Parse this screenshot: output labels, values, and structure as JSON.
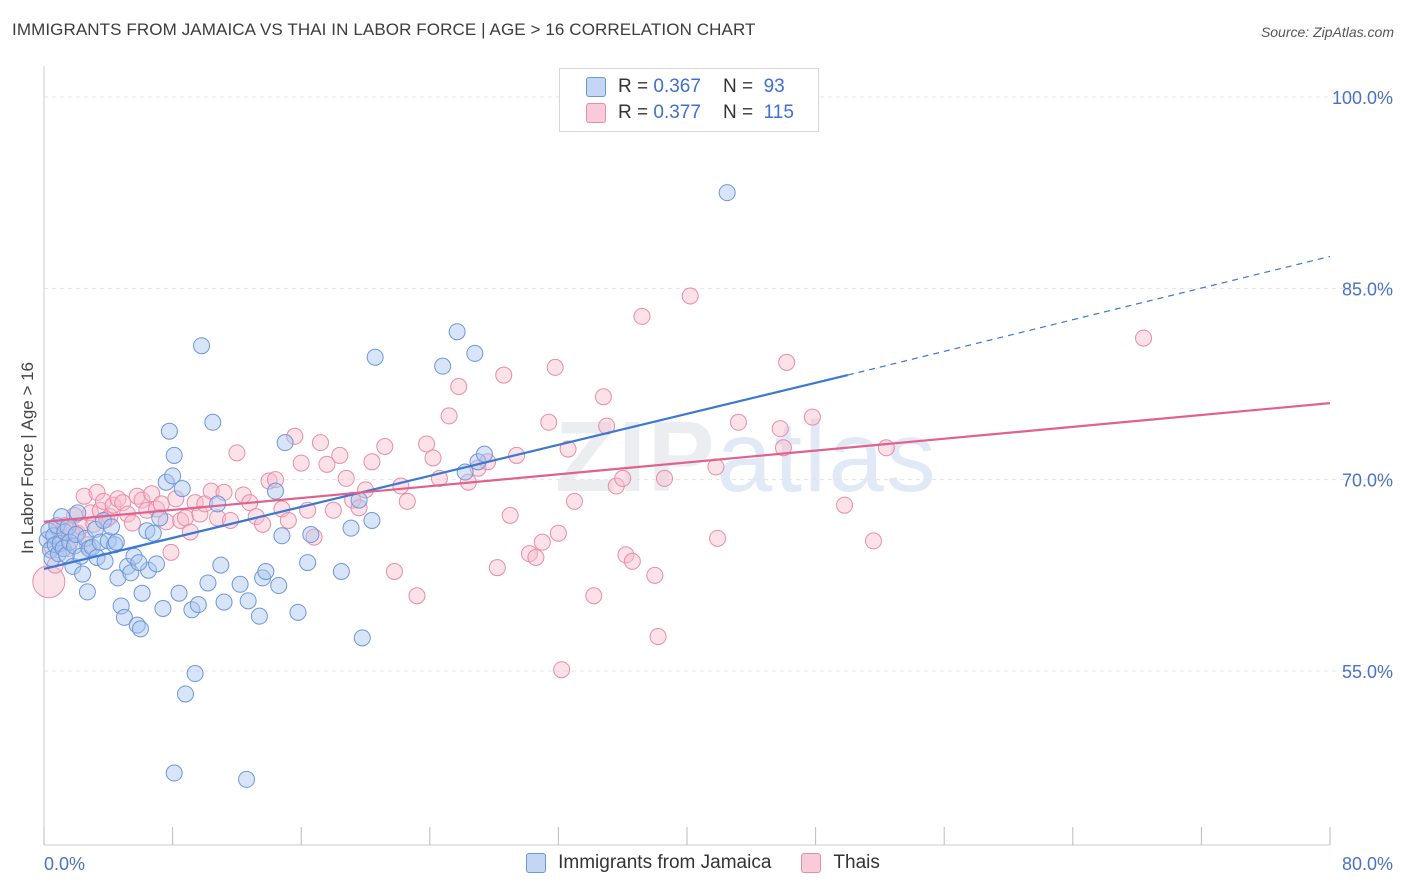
{
  "header": {
    "title": "IMMIGRANTS FROM JAMAICA VS THAI IN LABOR FORCE | AGE > 16 CORRELATION CHART",
    "source": "Source: ZipAtlas.com"
  },
  "legend": {
    "r_label": "R =",
    "n_label": "N =",
    "rows": [
      {
        "r": "0.367",
        "n": "93"
      },
      {
        "r": "0.377",
        "n": "115"
      }
    ]
  },
  "watermark": {
    "zip": "ZIP",
    "atlas": "atlas"
  },
  "colors": {
    "jamaica_fill": "#a9c6f0",
    "jamaica_stroke": "#6d97d8",
    "jamaica_line": "#3b78d0",
    "thai_fill": "#f6bccd",
    "thai_stroke": "#e88ca8",
    "thai_line": "#e0628c",
    "grid": "#e4e4e4",
    "tick_label": "#4a72c4"
  },
  "chart_data": {
    "type": "scatter",
    "title": "IMMIGRANTS FROM JAMAICA VS THAI IN LABOR FORCE | AGE > 16 CORRELATION CHART",
    "xlabel": "",
    "ylabel": "In Labor Force | Age > 16",
    "xlim": [
      0,
      80
    ],
    "ylim": [
      40,
      104
    ],
    "x_tick_labels": [
      "0.0%",
      "80.0%"
    ],
    "y_ticks": [
      55,
      70,
      85,
      100
    ],
    "y_tick_labels": [
      "55.0%",
      "70.0%",
      "85.0%",
      "100.0%"
    ],
    "grid": true,
    "legend_position": "top-center",
    "series": [
      {
        "name": "Immigrants from Jamaica",
        "r": 0.367,
        "n": 93,
        "trend": {
          "x0": 0,
          "y0": 63.0,
          "x1": 50.0,
          "y1": 78.2,
          "dashed_to_x": 80,
          "dashed_to_y": 87.5
        },
        "points": [
          [
            0.2,
            65.3
          ],
          [
            0.3,
            66.0
          ],
          [
            0.4,
            64.5
          ],
          [
            0.5,
            63.8
          ],
          [
            0.6,
            65.6
          ],
          [
            0.7,
            64.9
          ],
          [
            0.8,
            66.4
          ],
          [
            0.9,
            64.2
          ],
          [
            1.0,
            65.0
          ],
          [
            1.1,
            67.1
          ],
          [
            1.2,
            64.6
          ],
          [
            1.3,
            65.9
          ],
          [
            1.4,
            64.1
          ],
          [
            1.5,
            66.3
          ],
          [
            1.6,
            65.1
          ],
          [
            1.8,
            63.2
          ],
          [
            1.9,
            64.8
          ],
          [
            2.0,
            65.7
          ],
          [
            2.1,
            67.4
          ],
          [
            2.3,
            64.0
          ],
          [
            2.4,
            62.6
          ],
          [
            2.6,
            65.4
          ],
          [
            2.7,
            61.2
          ],
          [
            2.8,
            64.6
          ],
          [
            3.0,
            64.7
          ],
          [
            3.2,
            66.1
          ],
          [
            3.3,
            63.9
          ],
          [
            3.5,
            65.1
          ],
          [
            3.7,
            66.8
          ],
          [
            3.8,
            63.6
          ],
          [
            4.0,
            65.2
          ],
          [
            4.2,
            66.3
          ],
          [
            4.4,
            64.9
          ],
          [
            4.5,
            65.1
          ],
          [
            4.6,
            62.3
          ],
          [
            4.8,
            60.1
          ],
          [
            5.0,
            59.2
          ],
          [
            5.2,
            63.2
          ],
          [
            5.4,
            62.7
          ],
          [
            5.6,
            64.0
          ],
          [
            5.8,
            58.6
          ],
          [
            6.0,
            58.3
          ],
          [
            6.1,
            61.1
          ],
          [
            6.4,
            66.0
          ],
          [
            6.5,
            62.9
          ],
          [
            6.8,
            65.8
          ],
          [
            7.0,
            63.4
          ],
          [
            7.2,
            67.0
          ],
          [
            7.4,
            59.9
          ],
          [
            7.6,
            69.8
          ],
          [
            7.8,
            73.8
          ],
          [
            8.0,
            70.3
          ],
          [
            8.1,
            71.9
          ],
          [
            8.4,
            61.1
          ],
          [
            8.6,
            69.3
          ],
          [
            8.8,
            53.2
          ],
          [
            9.2,
            59.8
          ],
          [
            9.4,
            54.8
          ],
          [
            9.6,
            60.2
          ],
          [
            9.8,
            80.5
          ],
          [
            10.2,
            61.9
          ],
          [
            10.5,
            74.5
          ],
          [
            10.8,
            68.1
          ],
          [
            11.0,
            63.3
          ],
          [
            11.2,
            60.4
          ],
          [
            12.2,
            61.8
          ],
          [
            12.7,
            60.5
          ],
          [
            13.4,
            59.3
          ],
          [
            13.6,
            62.3
          ],
          [
            13.8,
            62.8
          ],
          [
            14.4,
            69.1
          ],
          [
            14.6,
            61.7
          ],
          [
            14.8,
            65.6
          ],
          [
            15.0,
            72.9
          ],
          [
            15.8,
            59.6
          ],
          [
            16.4,
            63.5
          ],
          [
            16.6,
            65.7
          ],
          [
            18.5,
            62.8
          ],
          [
            19.1,
            66.2
          ],
          [
            19.6,
            68.4
          ],
          [
            19.8,
            57.6
          ],
          [
            20.4,
            66.8
          ],
          [
            20.6,
            79.6
          ],
          [
            27.0,
            71.4
          ],
          [
            27.4,
            72.0
          ],
          [
            24.8,
            78.9
          ],
          [
            25.7,
            81.6
          ],
          [
            26.2,
            70.6
          ],
          [
            8.1,
            47.0
          ],
          [
            12.6,
            46.5
          ],
          [
            26.8,
            79.9
          ],
          [
            42.5,
            92.5
          ],
          [
            5.9,
            63.5
          ]
        ]
      },
      {
        "name": "Thais",
        "r": 0.377,
        "n": 115,
        "trend": {
          "x0": 0,
          "y0": 66.7,
          "x1": 80,
          "y1": 76.0
        },
        "points": [
          [
            0.3,
            62.0
          ],
          [
            0.5,
            64.7
          ],
          [
            0.7,
            63.3
          ],
          [
            0.9,
            66.1
          ],
          [
            1.1,
            65.2
          ],
          [
            1.3,
            66.4
          ],
          [
            1.5,
            64.6
          ],
          [
            1.7,
            66.0
          ],
          [
            1.9,
            67.2
          ],
          [
            2.1,
            65.8
          ],
          [
            2.3,
            66.3
          ],
          [
            2.5,
            68.7
          ],
          [
            2.7,
            64.9
          ],
          [
            2.9,
            67.4
          ],
          [
            3.1,
            66.5
          ],
          [
            3.3,
            69.0
          ],
          [
            3.5,
            67.6
          ],
          [
            3.7,
            68.3
          ],
          [
            3.9,
            66.9
          ],
          [
            4.1,
            67.1
          ],
          [
            4.3,
            68.0
          ],
          [
            4.6,
            68.5
          ],
          [
            4.9,
            68.2
          ],
          [
            5.2,
            67.3
          ],
          [
            5.5,
            66.6
          ],
          [
            5.8,
            68.7
          ],
          [
            6.1,
            68.4
          ],
          [
            6.4,
            67.6
          ],
          [
            6.7,
            68.9
          ],
          [
            7.0,
            67.7
          ],
          [
            7.3,
            68.1
          ],
          [
            7.6,
            66.7
          ],
          [
            7.9,
            64.3
          ],
          [
            8.2,
            68.5
          ],
          [
            8.5,
            66.8
          ],
          [
            8.8,
            67.0
          ],
          [
            9.1,
            65.9
          ],
          [
            9.4,
            68.2
          ],
          [
            9.7,
            67.3
          ],
          [
            10.0,
            68.1
          ],
          [
            10.4,
            69.1
          ],
          [
            10.8,
            67.0
          ],
          [
            11.2,
            69.0
          ],
          [
            11.6,
            66.8
          ],
          [
            12.0,
            72.1
          ],
          [
            12.4,
            68.8
          ],
          [
            12.8,
            68.2
          ],
          [
            13.2,
            67.1
          ],
          [
            13.6,
            66.5
          ],
          [
            14.0,
            69.9
          ],
          [
            14.4,
            70.0
          ],
          [
            14.8,
            67.7
          ],
          [
            15.2,
            66.8
          ],
          [
            15.6,
            73.4
          ],
          [
            16.0,
            71.3
          ],
          [
            16.4,
            67.6
          ],
          [
            16.8,
            65.5
          ],
          [
            17.2,
            72.9
          ],
          [
            17.6,
            71.2
          ],
          [
            18.0,
            67.6
          ],
          [
            18.4,
            71.9
          ],
          [
            18.8,
            70.1
          ],
          [
            19.2,
            68.4
          ],
          [
            19.6,
            67.8
          ],
          [
            20.0,
            69.2
          ],
          [
            20.4,
            71.4
          ],
          [
            21.2,
            72.6
          ],
          [
            21.8,
            62.8
          ],
          [
            22.2,
            69.5
          ],
          [
            22.6,
            68.3
          ],
          [
            23.2,
            60.9
          ],
          [
            23.8,
            72.8
          ],
          [
            24.2,
            71.7
          ],
          [
            24.6,
            70.1
          ],
          [
            25.2,
            75.0
          ],
          [
            25.8,
            77.3
          ],
          [
            26.4,
            69.8
          ],
          [
            27.0,
            70.9
          ],
          [
            27.6,
            71.4
          ],
          [
            28.2,
            63.1
          ],
          [
            28.6,
            78.2
          ],
          [
            29.0,
            67.2
          ],
          [
            29.4,
            71.9
          ],
          [
            30.2,
            64.2
          ],
          [
            30.6,
            63.9
          ],
          [
            31.0,
            65.1
          ],
          [
            31.4,
            74.5
          ],
          [
            31.8,
            78.8
          ],
          [
            32.0,
            65.8
          ],
          [
            32.6,
            72.4
          ],
          [
            33.0,
            68.3
          ],
          [
            34.2,
            60.9
          ],
          [
            34.8,
            76.5
          ],
          [
            35.0,
            74.2
          ],
          [
            35.6,
            69.5
          ],
          [
            36.0,
            70.1
          ],
          [
            36.2,
            64.1
          ],
          [
            36.6,
            63.6
          ],
          [
            37.2,
            82.8
          ],
          [
            38.0,
            62.5
          ],
          [
            38.6,
            70.1
          ],
          [
            38.2,
            57.7
          ],
          [
            40.2,
            84.4
          ],
          [
            41.8,
            71.0
          ],
          [
            41.9,
            65.4
          ],
          [
            43.2,
            74.5
          ],
          [
            45.8,
            74.0
          ],
          [
            46.0,
            72.5
          ],
          [
            46.2,
            79.2
          ],
          [
            47.8,
            74.9
          ],
          [
            49.8,
            68.0
          ],
          [
            51.6,
            65.2
          ],
          [
            52.4,
            72.5
          ],
          [
            68.4,
            81.1
          ],
          [
            32.2,
            55.1
          ]
        ]
      }
    ]
  },
  "bottom_legend": [
    {
      "label": "Immigrants from Jamaica"
    },
    {
      "label": "Thais"
    }
  ]
}
